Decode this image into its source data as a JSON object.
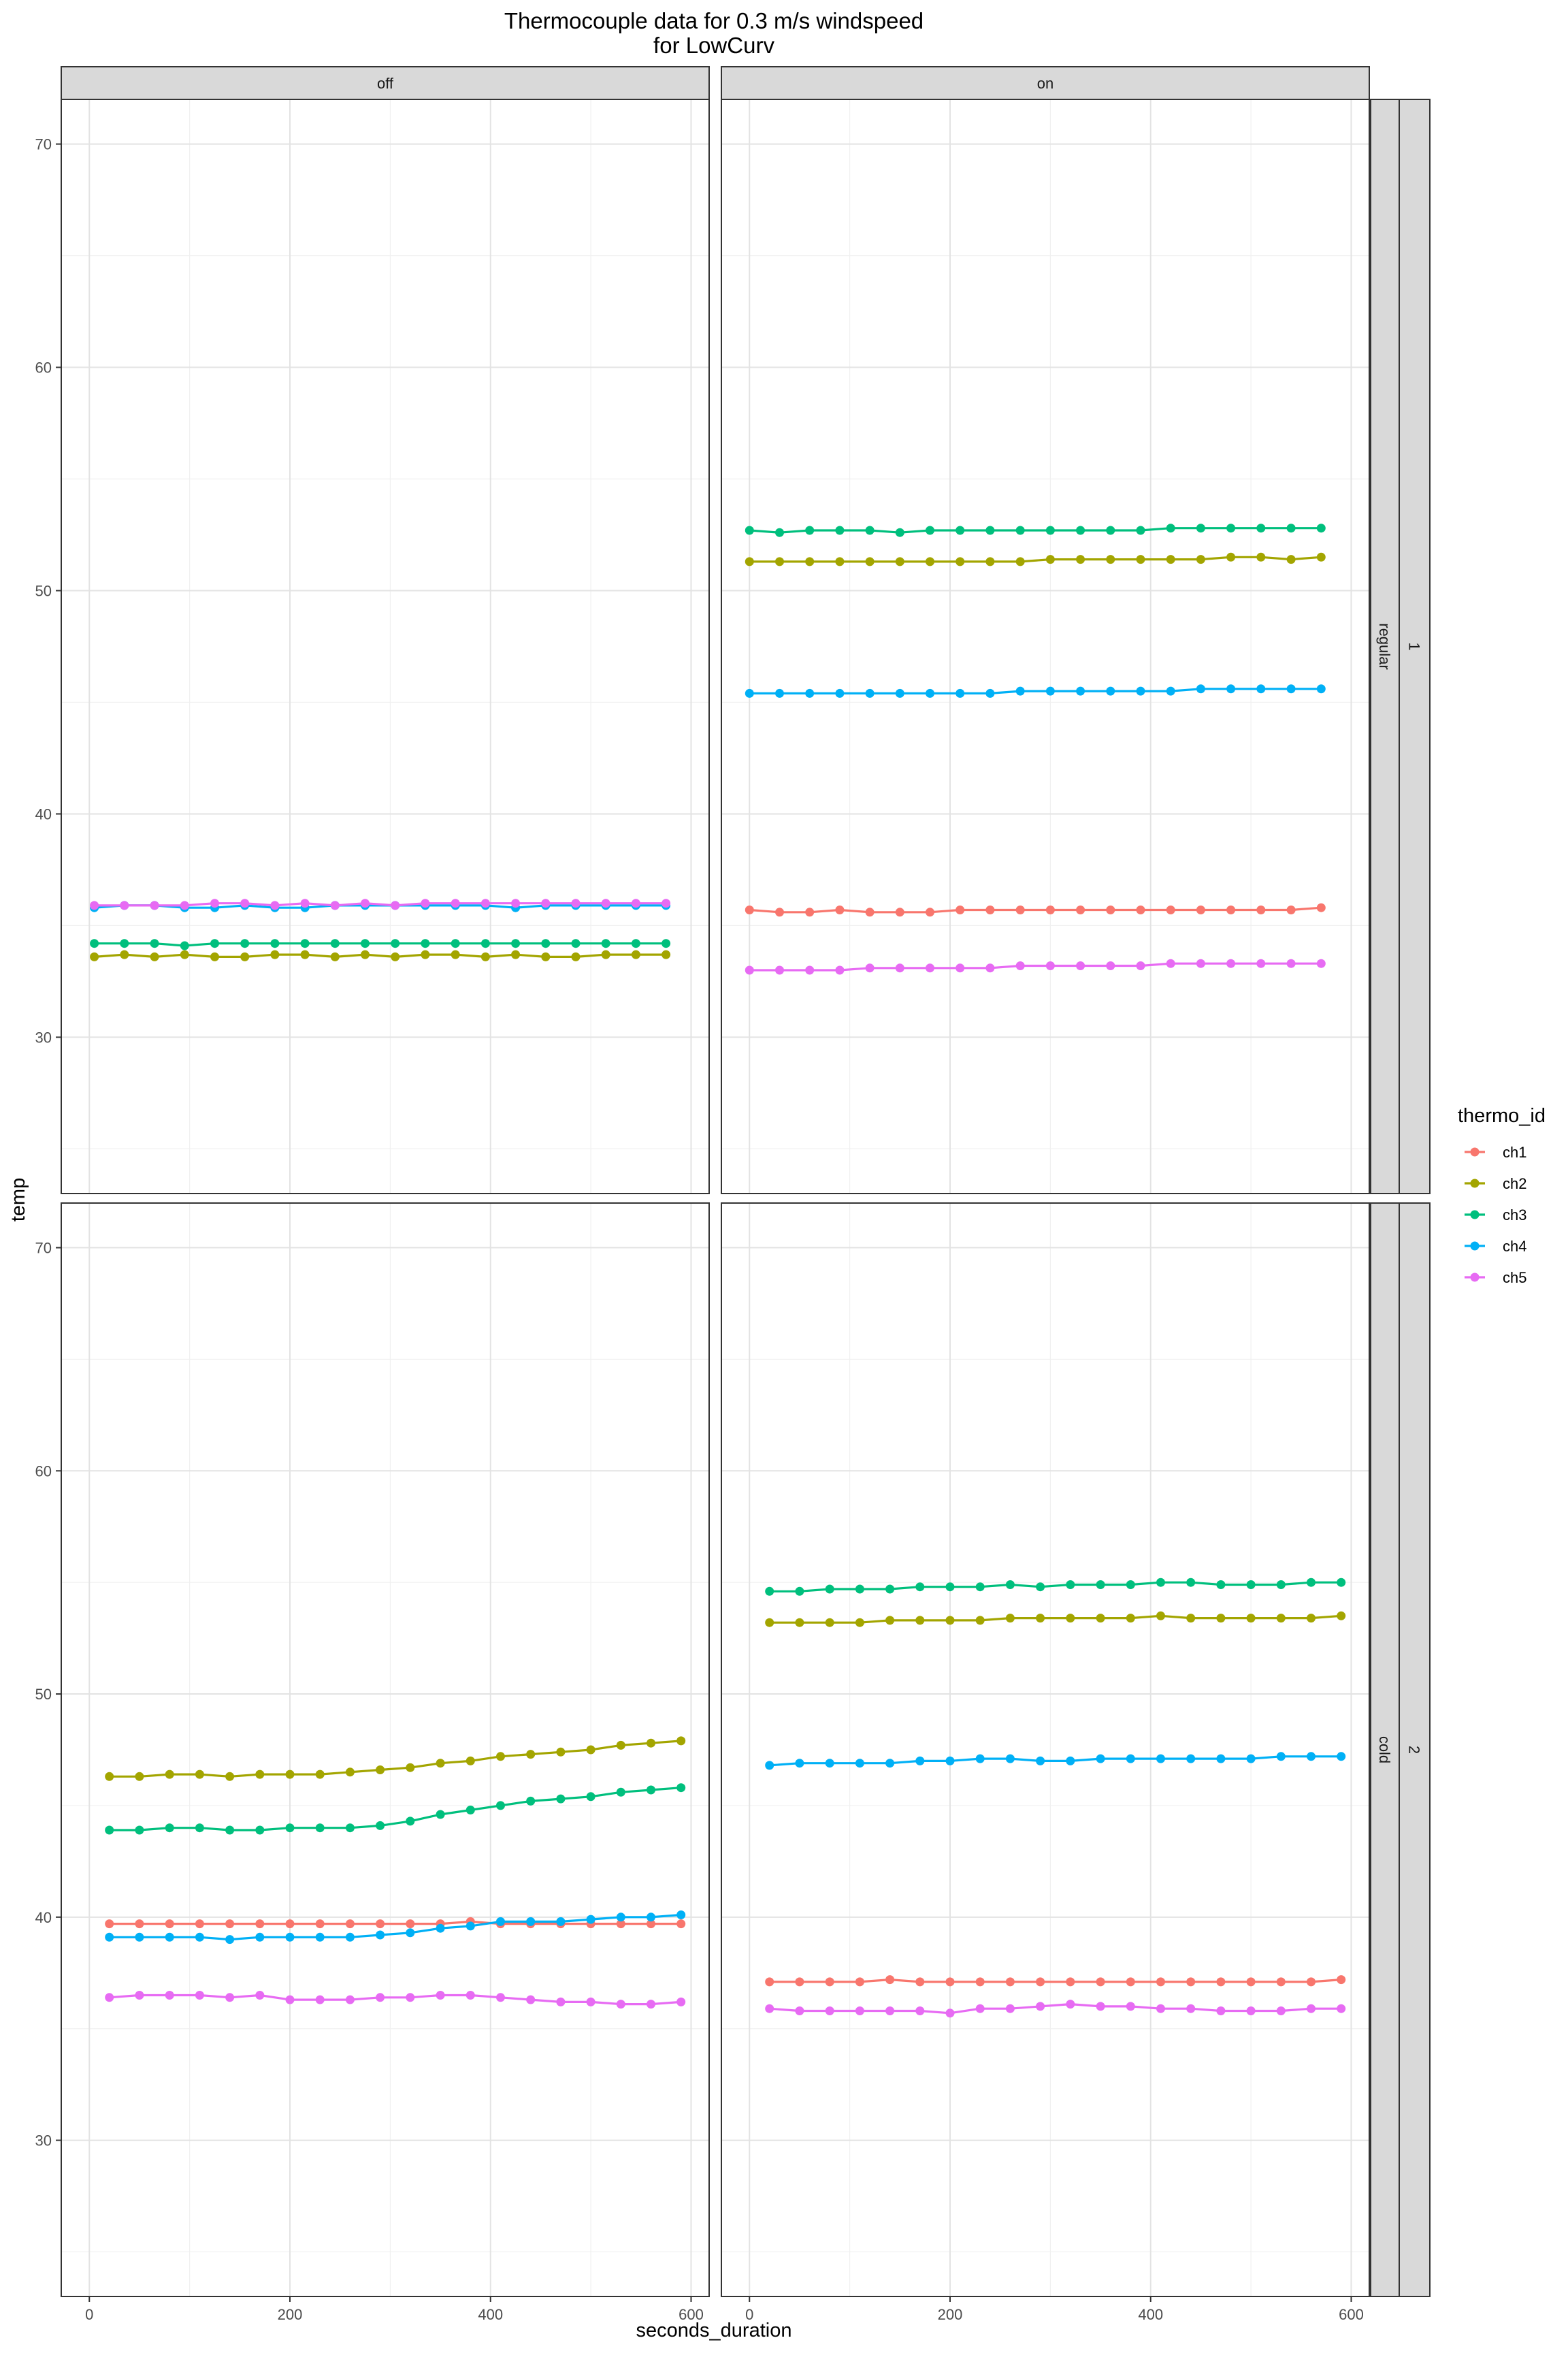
{
  "chart_data": {
    "type": "line",
    "title": [
      "Thermocouple data for 0.3 m/s windspeed",
      "for LowCurv"
    ],
    "xlabel": "seconds_duration",
    "ylabel": "temp",
    "ylim": [
      23,
      72
    ],
    "xlim": [
      -28,
      618
    ],
    "x_ticks": [
      0,
      200,
      400,
      600
    ],
    "y_ticks": [
      30,
      40,
      50,
      60,
      70
    ],
    "grid": true,
    "legend": {
      "title": "thermo_id",
      "placement": "right",
      "entries": [
        "ch1",
        "ch2",
        "ch3",
        "ch4",
        "ch5"
      ]
    },
    "colors": {
      "ch1": "#F8766D",
      "ch2": "#A3A500",
      "ch3": "#00BF7D",
      "ch4": "#00B0F6",
      "ch5": "#E76BF3"
    },
    "column_strips": [
      "off",
      "on"
    ],
    "row_strips": [
      {
        "outer": "1",
        "inner": "regular"
      },
      {
        "outer": "2",
        "inner": "cold"
      }
    ],
    "panels": [
      {
        "col": 0,
        "row": 0,
        "x": [
          5,
          35,
          65,
          95,
          125,
          155,
          185,
          215,
          245,
          275,
          305,
          335,
          365,
          395,
          425,
          455,
          485,
          515,
          545,
          575
        ],
        "series": [
          {
            "name": "ch2",
            "values": [
              33.6,
              33.7,
              33.6,
              33.7,
              33.6,
              33.6,
              33.7,
              33.7,
              33.6,
              33.7,
              33.6,
              33.7,
              33.7,
              33.6,
              33.7,
              33.6,
              33.6,
              33.7,
              33.7,
              33.7
            ]
          },
          {
            "name": "ch3",
            "values": [
              34.2,
              34.2,
              34.2,
              34.1,
              34.2,
              34.2,
              34.2,
              34.2,
              34.2,
              34.2,
              34.2,
              34.2,
              34.2,
              34.2,
              34.2,
              34.2,
              34.2,
              34.2,
              34.2,
              34.2
            ]
          },
          {
            "name": "ch4",
            "values": [
              35.8,
              35.9,
              35.9,
              35.8,
              35.8,
              35.9,
              35.8,
              35.8,
              35.9,
              35.9,
              35.9,
              35.9,
              35.9,
              35.9,
              35.8,
              35.9,
              35.9,
              35.9,
              35.9,
              35.9
            ]
          },
          {
            "name": "ch5",
            "values": [
              35.9,
              35.9,
              35.9,
              35.9,
              36.0,
              36.0,
              35.9,
              36.0,
              35.9,
              36.0,
              35.9,
              36.0,
              36.0,
              36.0,
              36.0,
              36.0,
              36.0,
              36.0,
              36.0,
              36.0
            ]
          }
        ]
      },
      {
        "col": 1,
        "row": 0,
        "x": [
          0,
          30,
          60,
          90,
          120,
          150,
          180,
          210,
          240,
          270,
          300,
          330,
          360,
          390,
          420,
          450,
          480,
          510,
          540,
          570
        ],
        "series": [
          {
            "name": "ch1",
            "values": [
              35.7,
              35.6,
              35.6,
              35.7,
              35.6,
              35.6,
              35.6,
              35.7,
              35.7,
              35.7,
              35.7,
              35.7,
              35.7,
              35.7,
              35.7,
              35.7,
              35.7,
              35.7,
              35.7,
              35.8
            ]
          },
          {
            "name": "ch2",
            "values": [
              51.3,
              51.3,
              51.3,
              51.3,
              51.3,
              51.3,
              51.3,
              51.3,
              51.3,
              51.3,
              51.4,
              51.4,
              51.4,
              51.4,
              51.4,
              51.4,
              51.5,
              51.5,
              51.4,
              51.5
            ]
          },
          {
            "name": "ch3",
            "values": [
              52.7,
              52.6,
              52.7,
              52.7,
              52.7,
              52.6,
              52.7,
              52.7,
              52.7,
              52.7,
              52.7,
              52.7,
              52.7,
              52.7,
              52.8,
              52.8,
              52.8,
              52.8,
              52.8,
              52.8
            ]
          },
          {
            "name": "ch4",
            "values": [
              45.4,
              45.4,
              45.4,
              45.4,
              45.4,
              45.4,
              45.4,
              45.4,
              45.4,
              45.5,
              45.5,
              45.5,
              45.5,
              45.5,
              45.5,
              45.6,
              45.6,
              45.6,
              45.6,
              45.6
            ]
          },
          {
            "name": "ch5",
            "values": [
              33.0,
              33.0,
              33.0,
              33.0,
              33.1,
              33.1,
              33.1,
              33.1,
              33.1,
              33.2,
              33.2,
              33.2,
              33.2,
              33.2,
              33.3,
              33.3,
              33.3,
              33.3,
              33.3,
              33.3
            ]
          }
        ]
      },
      {
        "col": 0,
        "row": 1,
        "x": [
          20,
          50,
          80,
          110,
          140,
          170,
          200,
          230,
          260,
          290,
          320,
          350,
          380,
          410,
          440,
          470,
          500,
          530,
          560,
          590
        ],
        "series": [
          {
            "name": "ch1",
            "values": [
              39.7,
              39.7,
              39.7,
              39.7,
              39.7,
              39.7,
              39.7,
              39.7,
              39.7,
              39.7,
              39.7,
              39.7,
              39.8,
              39.7,
              39.7,
              39.7,
              39.7,
              39.7,
              39.7,
              39.7
            ]
          },
          {
            "name": "ch2",
            "values": [
              46.3,
              46.3,
              46.4,
              46.4,
              46.3,
              46.4,
              46.4,
              46.4,
              46.5,
              46.6,
              46.7,
              46.9,
              47.0,
              47.2,
              47.3,
              47.4,
              47.5,
              47.7,
              47.8,
              47.9
            ]
          },
          {
            "name": "ch3",
            "values": [
              43.9,
              43.9,
              44.0,
              44.0,
              43.9,
              43.9,
              44.0,
              44.0,
              44.0,
              44.1,
              44.3,
              44.6,
              44.8,
              45.0,
              45.2,
              45.3,
              45.4,
              45.6,
              45.7,
              45.8
            ]
          },
          {
            "name": "ch4",
            "values": [
              39.1,
              39.1,
              39.1,
              39.1,
              39.0,
              39.1,
              39.1,
              39.1,
              39.1,
              39.2,
              39.3,
              39.5,
              39.6,
              39.8,
              39.8,
              39.8,
              39.9,
              40.0,
              40.0,
              40.1
            ]
          },
          {
            "name": "ch5",
            "values": [
              36.4,
              36.5,
              36.5,
              36.5,
              36.4,
              36.5,
              36.3,
              36.3,
              36.3,
              36.4,
              36.4,
              36.5,
              36.5,
              36.4,
              36.3,
              36.2,
              36.2,
              36.1,
              36.1,
              36.2
            ]
          }
        ]
      },
      {
        "col": 1,
        "row": 1,
        "x": [
          20,
          50,
          80,
          110,
          140,
          170,
          200,
          230,
          260,
          290,
          320,
          350,
          380,
          410,
          440,
          470,
          500,
          530,
          560,
          590
        ],
        "series": [
          {
            "name": "ch1",
            "values": [
              37.1,
              37.1,
              37.1,
              37.1,
              37.2,
              37.1,
              37.1,
              37.1,
              37.1,
              37.1,
              37.1,
              37.1,
              37.1,
              37.1,
              37.1,
              37.1,
              37.1,
              37.1,
              37.1,
              37.2
            ]
          },
          {
            "name": "ch2",
            "values": [
              53.2,
              53.2,
              53.2,
              53.2,
              53.3,
              53.3,
              53.3,
              53.3,
              53.4,
              53.4,
              53.4,
              53.4,
              53.4,
              53.5,
              53.4,
              53.4,
              53.4,
              53.4,
              53.4,
              53.5
            ]
          },
          {
            "name": "ch3",
            "values": [
              54.6,
              54.6,
              54.7,
              54.7,
              54.7,
              54.8,
              54.8,
              54.8,
              54.9,
              54.8,
              54.9,
              54.9,
              54.9,
              55.0,
              55.0,
              54.9,
              54.9,
              54.9,
              55.0,
              55.0
            ]
          },
          {
            "name": "ch4",
            "values": [
              46.8,
              46.9,
              46.9,
              46.9,
              46.9,
              47.0,
              47.0,
              47.1,
              47.1,
              47.0,
              47.0,
              47.1,
              47.1,
              47.1,
              47.1,
              47.1,
              47.1,
              47.2,
              47.2,
              47.2
            ]
          },
          {
            "name": "ch5",
            "values": [
              35.9,
              35.8,
              35.8,
              35.8,
              35.8,
              35.8,
              35.7,
              35.9,
              35.9,
              36.0,
              36.1,
              36.0,
              36.0,
              35.9,
              35.9,
              35.8,
              35.8,
              35.8,
              35.9,
              35.9
            ]
          }
        ]
      }
    ]
  }
}
